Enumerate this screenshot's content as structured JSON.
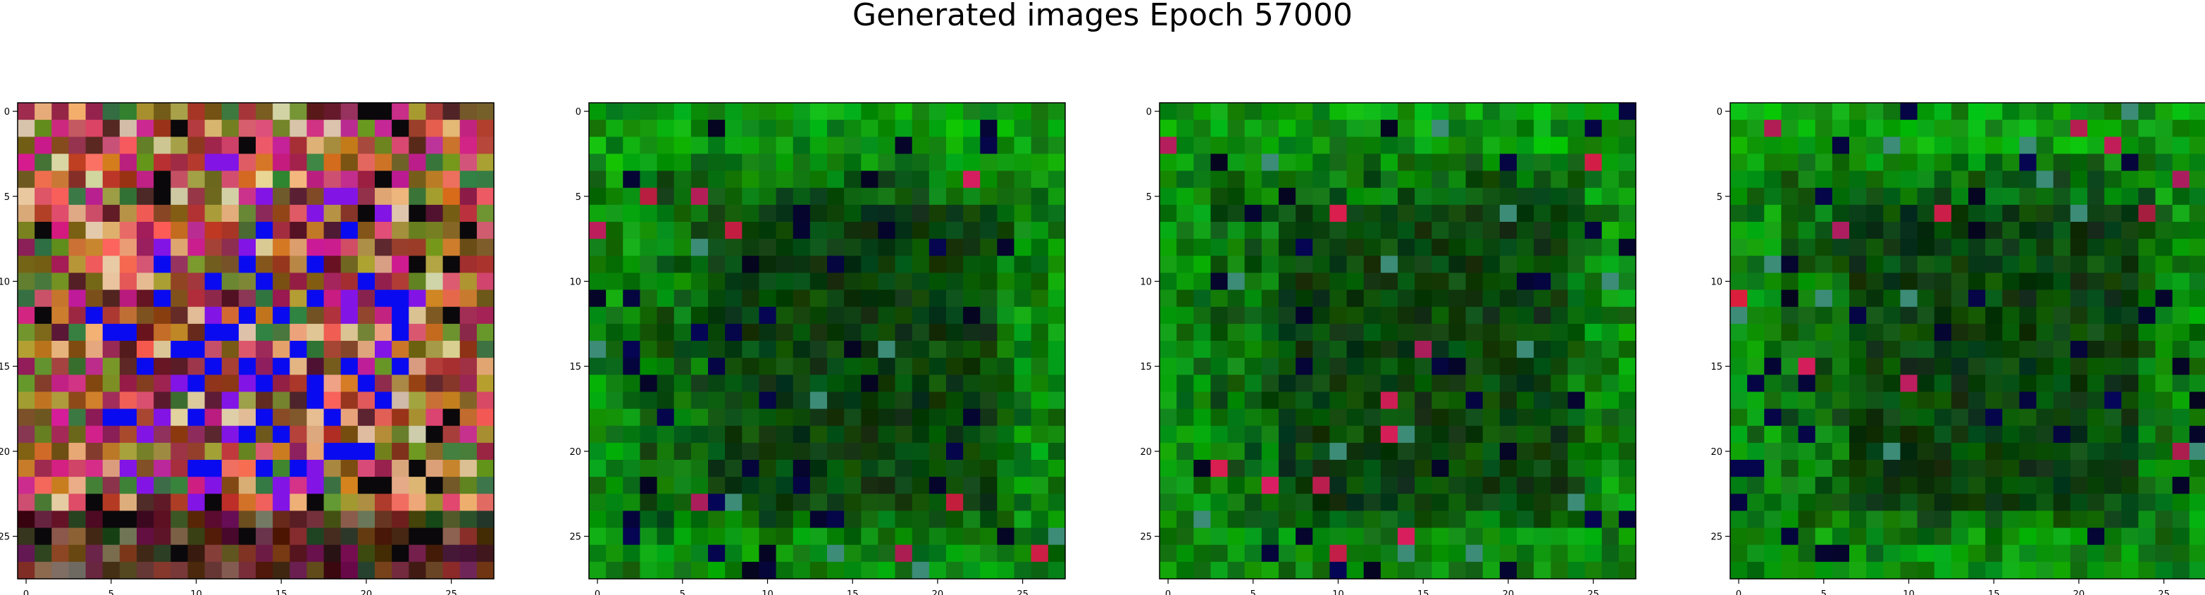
{
  "figure": {
    "title": "Generated images Epoch 57000",
    "panels": [
      {
        "palette": "multicolor"
      },
      {
        "palette": "green"
      },
      {
        "palette": "green"
      },
      {
        "palette": "green"
      }
    ],
    "axis_ticks": {
      "x": [
        "0",
        "5",
        "10",
        "15",
        "20",
        "25"
      ],
      "y": [
        "0",
        "5",
        "10",
        "15",
        "20",
        "25"
      ]
    },
    "colors": {
      "axis": "#000000",
      "background": "#ffffff"
    }
  }
}
